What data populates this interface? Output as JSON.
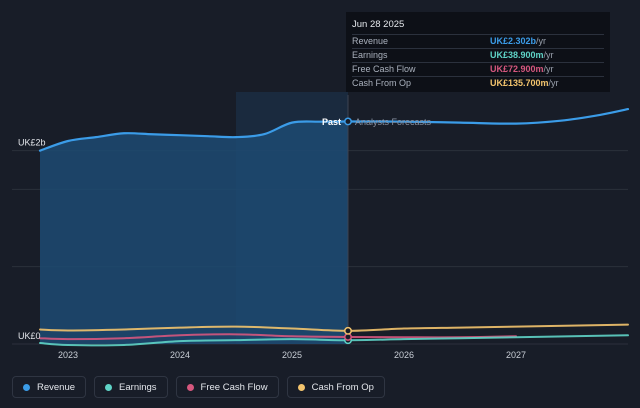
{
  "tooltip": {
    "date": "Jun 28 2025",
    "rows": [
      {
        "label": "Revenue",
        "value": "UK£2.302b",
        "unit": " /yr",
        "color": "#3b9ce8"
      },
      {
        "label": "Earnings",
        "value": "UK£38.900m",
        "unit": " /yr",
        "color": "#5fd4c7"
      },
      {
        "label": "Free Cash Flow",
        "value": "UK£72.900m",
        "unit": " /yr",
        "color": "#d6577e"
      },
      {
        "label": "Cash From Op",
        "value": "UK£135.700m",
        "unit": " /yr",
        "color": "#f3c46d"
      }
    ]
  },
  "legend": [
    {
      "label": "Revenue",
      "color": "#3b9ce8"
    },
    {
      "label": "Earnings",
      "color": "#5fd4c7"
    },
    {
      "label": "Free Cash Flow",
      "color": "#d6577e"
    },
    {
      "label": "Cash From Op",
      "color": "#f3c46d"
    }
  ],
  "chart_data": {
    "type": "area",
    "ylim": [
      0,
      2.4
    ],
    "y_tick_labels": [
      {
        "value": 2.0,
        "label": "UK£2b"
      },
      {
        "value": 0,
        "label": "UK£0"
      }
    ],
    "x_ticks": [
      "2023",
      "2024",
      "2025",
      "2026",
      "2027"
    ],
    "past_label": "Past",
    "forecast_label": "Analysts Forecasts",
    "divider_x": 2025.5,
    "highlight_range": [
      2024.5,
      2025.5
    ],
    "series": [
      {
        "name": "Revenue",
        "color": "#3b9ce8",
        "x": [
          2022.75,
          2023.0,
          2023.25,
          2023.5,
          2023.75,
          2024.0,
          2024.25,
          2024.5,
          2024.75,
          2025.0,
          2025.25,
          2025.5,
          2026.0,
          2026.5,
          2027.0,
          2027.4,
          2027.75,
          2028.0
        ],
        "y": [
          2.0,
          2.1,
          2.14,
          2.18,
          2.17,
          2.16,
          2.15,
          2.14,
          2.17,
          2.29,
          2.3,
          2.302,
          2.3,
          2.29,
          2.28,
          2.31,
          2.37,
          2.43
        ]
      },
      {
        "name": "Earnings",
        "color": "#5fd4c7",
        "x": [
          2022.75,
          2023.0,
          2023.5,
          2024.0,
          2024.5,
          2025.0,
          2025.5,
          2026.0,
          2026.5,
          2027.0,
          2027.5,
          2028.0
        ],
        "y": [
          0.01,
          -0.01,
          -0.01,
          0.03,
          0.04,
          0.05,
          0.039,
          0.05,
          0.06,
          0.07,
          0.08,
          0.09
        ]
      },
      {
        "name": "Free Cash Flow",
        "color": "#d6577e",
        "x": [
          2022.75,
          2023.0,
          2023.5,
          2024.0,
          2024.5,
          2025.0,
          2025.5,
          2026.0,
          2026.5,
          2027.0
        ],
        "y": [
          0.06,
          0.05,
          0.06,
          0.09,
          0.1,
          0.08,
          0.073,
          0.07,
          0.07,
          0.08
        ]
      },
      {
        "name": "Cash From Op",
        "color": "#f3c46d",
        "x": [
          2022.75,
          2023.0,
          2023.5,
          2024.0,
          2024.5,
          2025.0,
          2025.5,
          2026.0,
          2026.5,
          2027.0,
          2027.5,
          2028.0
        ],
        "y": [
          0.15,
          0.14,
          0.15,
          0.17,
          0.18,
          0.16,
          0.136,
          0.16,
          0.17,
          0.18,
          0.19,
          0.2
        ]
      }
    ]
  }
}
